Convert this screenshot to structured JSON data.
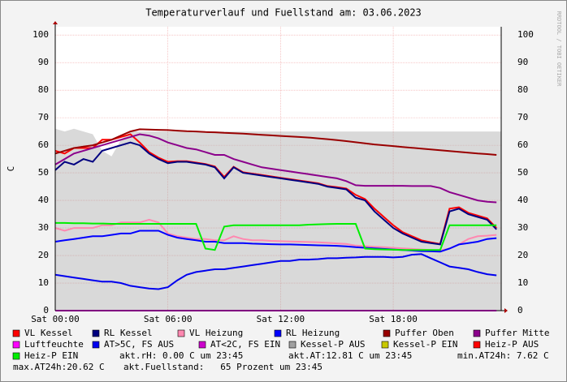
{
  "chart_data": {
    "type": "line",
    "title": "Temperaturverlauf und Fuellstand am: 03.06.2023",
    "y_label": "C",
    "side_label": "RRDTOOL / TOBI OETIKER",
    "x": [
      0,
      0.5,
      1,
      1.5,
      2,
      2.5,
      3,
      3.5,
      4,
      4.5,
      5,
      5.5,
      6,
      6.5,
      7,
      7.5,
      8,
      8.5,
      9,
      9.5,
      10,
      10.5,
      11,
      11.5,
      12,
      12.5,
      13,
      13.5,
      14,
      14.5,
      15,
      15.5,
      16,
      16.5,
      17,
      17.5,
      18,
      18.5,
      19,
      19.5,
      20,
      20.5,
      21,
      21.5,
      22,
      22.5,
      23,
      23.5
    ],
    "xlim": [
      0,
      23.75
    ],
    "xticks": [
      {
        "value": 0,
        "label": "Sat 00:00"
      },
      {
        "value": 6,
        "label": "Sat 06:00"
      },
      {
        "value": 12,
        "label": "Sat 12:00"
      },
      {
        "value": 18,
        "label": "Sat 18:00"
      }
    ],
    "ylim": [
      0,
      103
    ],
    "yticks": [
      0,
      10,
      20,
      30,
      40,
      50,
      60,
      70,
      80,
      90,
      100
    ],
    "grid": true,
    "series": [
      {
        "name": "Kessel-P AUS",
        "color": "#a0a0a0",
        "area": true,
        "values": [
          66,
          65,
          66,
          65,
          64,
          58,
          56,
          62,
          65,
          65,
          65,
          65,
          65,
          65,
          65,
          65,
          65,
          65,
          65,
          65,
          65,
          65,
          65,
          65,
          65,
          65,
          65,
          65,
          65,
          65,
          65,
          65,
          65,
          65,
          65,
          65,
          65,
          65,
          65,
          65,
          65,
          65,
          65,
          65,
          65,
          65,
          65,
          65
        ]
      },
      {
        "name": "VL Kessel",
        "color": "#ff0000",
        "values": [
          58,
          57,
          59,
          59,
          59,
          62,
          62,
          63,
          64,
          61,
          57.5,
          55.5,
          54,
          54.2,
          54.2,
          53.7,
          53.2,
          52.3,
          48.5,
          52.2,
          50.2,
          49.7,
          49.2,
          48.7,
          48.2,
          47.7,
          47.2,
          46.7,
          46.2,
          45.2,
          44.8,
          44.3,
          42,
          40.5,
          37,
          34,
          31,
          28.5,
          27,
          25.5,
          24.8,
          24.2,
          37,
          37.5,
          35.5,
          34.5,
          33.5,
          30
        ]
      },
      {
        "name": "RL Kessel",
        "color": "#000080",
        "values": [
          51,
          54,
          53,
          55,
          54,
          58,
          59,
          60,
          61,
          60,
          57,
          55,
          53.5,
          54,
          54,
          53.5,
          53,
          52,
          48,
          52,
          50,
          49.5,
          49,
          48.5,
          48,
          47.5,
          47,
          46.5,
          46,
          45,
          44.5,
          44,
          41,
          40,
          36,
          33,
          30,
          28,
          26.5,
          25,
          24.5,
          24,
          36,
          37,
          35,
          34,
          33,
          29.5
        ]
      },
      {
        "name": "VL Heizung",
        "color": "#ff88b0",
        "values": [
          30,
          29,
          30,
          30,
          30,
          31,
          31,
          32,
          32,
          32,
          33,
          32,
          28,
          27,
          26.5,
          26,
          26,
          25.5,
          25.5,
          27,
          26,
          25.5,
          25.5,
          25.3,
          25.2,
          25.1,
          25,
          24.9,
          24.8,
          24.6,
          24.4,
          24.2,
          23.6,
          23.4,
          23.2,
          23,
          22.8,
          22.6,
          22.4,
          22.2,
          22,
          21.8,
          22.5,
          24,
          26,
          27,
          27.2,
          27.5
        ]
      },
      {
        "name": "RL Heizung",
        "color": "#0000ff",
        "values": [
          25,
          25.5,
          26,
          26.5,
          27,
          27,
          27.5,
          28,
          28,
          29,
          29,
          29,
          27.5,
          26.5,
          26,
          25.5,
          25,
          25,
          24.5,
          24.5,
          24.5,
          24.3,
          24.2,
          24.1,
          24,
          24,
          23.9,
          23.8,
          23.7,
          23.6,
          23.5,
          23.3,
          23,
          22.8,
          22.6,
          22.4,
          22.2,
          22,
          21.8,
          21.6,
          21.5,
          21.4,
          22.5,
          24,
          24.5,
          25,
          26,
          26.3
        ]
      },
      {
        "name": "Puffer Oben",
        "color": "#990000",
        "values": [
          57,
          58,
          59,
          59.5,
          60,
          61,
          62,
          63.5,
          65,
          65.8,
          65.7,
          65.6,
          65.5,
          65.3,
          65.1,
          65,
          64.8,
          64.7,
          64.5,
          64.4,
          64.2,
          64,
          63.8,
          63.6,
          63.4,
          63.2,
          63,
          62.8,
          62.5,
          62.2,
          61.9,
          61.5,
          61.1,
          60.7,
          60.3,
          60,
          59.7,
          59.4,
          59.1,
          58.8,
          58.5,
          58.2,
          57.9,
          57.6,
          57.3,
          57,
          56.8,
          56.5
        ]
      },
      {
        "name": "Puffer Mitte",
        "color": "#8b008b",
        "values": [
          53,
          55,
          57,
          58,
          59,
          60,
          61,
          62,
          63,
          64,
          63.5,
          62.5,
          61,
          60,
          59,
          58.5,
          57.5,
          56.5,
          56.5,
          55,
          54,
          53,
          52,
          51.5,
          51,
          50.5,
          50,
          49.5,
          49,
          48.5,
          48,
          47,
          45.5,
          45.3,
          45.3,
          45.3,
          45.3,
          45.3,
          45.2,
          45.2,
          45.2,
          44.5,
          43,
          42,
          41,
          40,
          39.5,
          39.3
        ]
      },
      {
        "name": "Luftfeuchte",
        "color": "#ff00ff",
        "values": [
          0,
          0,
          0,
          0,
          0,
          0,
          0,
          0,
          0,
          0,
          0,
          0,
          0,
          0,
          0,
          0,
          0,
          0,
          0,
          0,
          0,
          0,
          0,
          0,
          0,
          0,
          0,
          0,
          0,
          0,
          0,
          0,
          0,
          0,
          0,
          0,
          0,
          0,
          0,
          0,
          0,
          0,
          0,
          0,
          0,
          0,
          0,
          0
        ]
      },
      {
        "name": "AT>5C, FS AUS",
        "color": "#0000ee",
        "values": [
          13,
          12.5,
          12,
          11.5,
          11,
          10.5,
          10.5,
          10,
          9,
          8.5,
          8,
          7.8,
          8.5,
          11,
          13,
          14,
          14.5,
          15,
          15,
          15.5,
          16,
          16.5,
          17,
          17.5,
          18,
          18,
          18.5,
          18.5,
          18.7,
          19,
          19,
          19.2,
          19.3,
          19.5,
          19.5,
          19.5,
          19.3,
          19.5,
          20.3,
          20.5,
          19,
          17.5,
          16,
          15.5,
          15,
          14,
          13.2,
          12.8
        ]
      },
      {
        "name": "AT<2C, FS EIN",
        "color": "#cc00cc"
      },
      {
        "name": "Kessel-P EIN",
        "color": "#c8c800"
      },
      {
        "name": "Heiz-P AUS",
        "color": "#ff0000"
      },
      {
        "name": "Heiz-P EIN",
        "color": "#00ee00",
        "values": [
          31.8,
          31.8,
          31.7,
          31.7,
          31.6,
          31.6,
          31.5,
          31.5,
          31.5,
          31.5,
          31.5,
          31.5,
          31.5,
          31.5,
          31.5,
          31.5,
          22.5,
          22,
          30.5,
          31,
          31,
          31,
          31,
          31,
          31,
          31,
          31,
          31.2,
          31.3,
          31.4,
          31.5,
          31.5,
          31.5,
          22.5,
          22.3,
          22.2,
          22.1,
          22,
          22,
          22,
          22,
          22,
          31,
          31,
          31,
          31,
          31,
          31
        ]
      }
    ],
    "notes": [
      "akt.rH: 0.00 C um 23:45",
      "akt.AT:12.81 C um 23:45",
      "min.AT24h: 7.62 C",
      "max.AT24h:20.62 C",
      "akt.Fuellstand:   65 Prozent um 23:45"
    ]
  }
}
